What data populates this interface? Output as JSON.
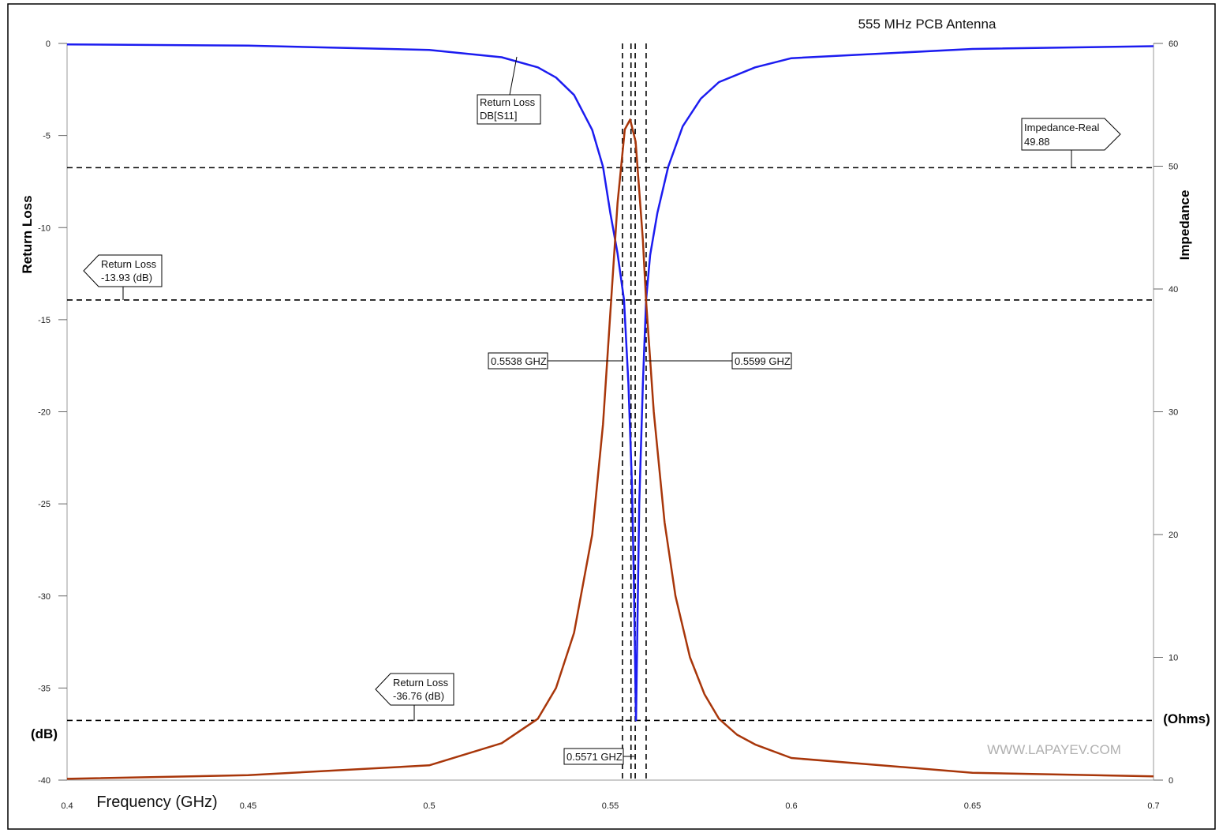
{
  "chart_data": {
    "type": "line",
    "title": "555 MHz PCB Antenna",
    "xlabel": "Frequency (GHz)",
    "ylabel_left": "Return Loss",
    "ylabel_left_unit": "(dB)",
    "ylabel_right": "Impedance",
    "ylabel_right_unit": "(Ohms)",
    "watermark": "WWW.LAPAYEV.COM",
    "xlim": [
      0.4,
      0.7
    ],
    "ylim_left": [
      -40,
      0
    ],
    "ylim_right": [
      0,
      60
    ],
    "x_ticks": [
      "0.4",
      "0.45",
      "0.5",
      "0.55",
      "0.6",
      "0.65",
      "0.7"
    ],
    "y_left_ticks": [
      "0",
      "-5",
      "-10",
      "-15",
      "-20",
      "-25",
      "-30",
      "-35",
      "-40"
    ],
    "y_right_ticks": [
      "60",
      "50",
      "40",
      "30",
      "20",
      "10",
      "0"
    ],
    "series": [
      {
        "name": "Return Loss DB[S11]",
        "axis": "left",
        "color": "#1c1cf0",
        "x": [
          0.4,
          0.45,
          0.5,
          0.52,
          0.53,
          0.535,
          0.54,
          0.545,
          0.548,
          0.55,
          0.552,
          0.5538,
          0.555,
          0.556,
          0.5565,
          0.5571,
          0.5577,
          0.558,
          0.559,
          0.5599,
          0.561,
          0.563,
          0.566,
          0.57,
          0.575,
          0.58,
          0.59,
          0.6,
          0.65,
          0.7
        ],
        "y": [
          -0.05,
          -0.12,
          -0.35,
          -0.75,
          -1.3,
          -1.85,
          -2.8,
          -4.7,
          -6.7,
          -9.2,
          -11.4,
          -13.93,
          -18.5,
          -24,
          -29,
          -36.76,
          -29,
          -25,
          -18.5,
          -13.93,
          -11.5,
          -9.2,
          -6.7,
          -4.5,
          -3.0,
          -2.1,
          -1.3,
          -0.8,
          -0.3,
          -0.15
        ]
      },
      {
        "name": "Impedance-Real",
        "axis": "right",
        "color": "#a8360a",
        "x": [
          0.4,
          0.45,
          0.5,
          0.52,
          0.53,
          0.535,
          0.54,
          0.545,
          0.548,
          0.55,
          0.552,
          0.554,
          0.5555,
          0.557,
          0.559,
          0.5599,
          0.562,
          0.565,
          0.568,
          0.572,
          0.576,
          0.58,
          0.585,
          0.59,
          0.6,
          0.65,
          0.7
        ],
        "y": [
          0.1,
          0.4,
          1.2,
          3.0,
          5.0,
          7.5,
          12.0,
          20.0,
          29.0,
          38.0,
          47.0,
          53.0,
          53.8,
          52.0,
          44.0,
          39.0,
          30.0,
          21.0,
          15.0,
          10.0,
          7.0,
          5.0,
          3.7,
          2.9,
          1.8,
          0.6,
          0.3
        ]
      }
    ],
    "markers": {
      "freq_low": 0.5538,
      "freq_center": 0.5571,
      "freq_high": 0.5599,
      "return_loss_level": -13.93,
      "return_loss_min": -36.76,
      "impedance_real": 49.88
    },
    "annotations": {
      "curve_label_line1": "Return Loss",
      "curve_label_line2": "DB[S11]",
      "imp_label_line1": "Impedance-Real",
      "imp_label_line2": "49.88",
      "rl1_label_line1": "Return Loss",
      "rl1_label_line2": "-13.93  (dB)",
      "rl2_label_line1": "Return Loss",
      "rl2_label_line2": "-36.76  (dB)",
      "f_low_label": "0.5538 GHZ",
      "f_high_label": "0.5599 GHZ",
      "f_center_label": "0.5571 GHZ"
    }
  }
}
